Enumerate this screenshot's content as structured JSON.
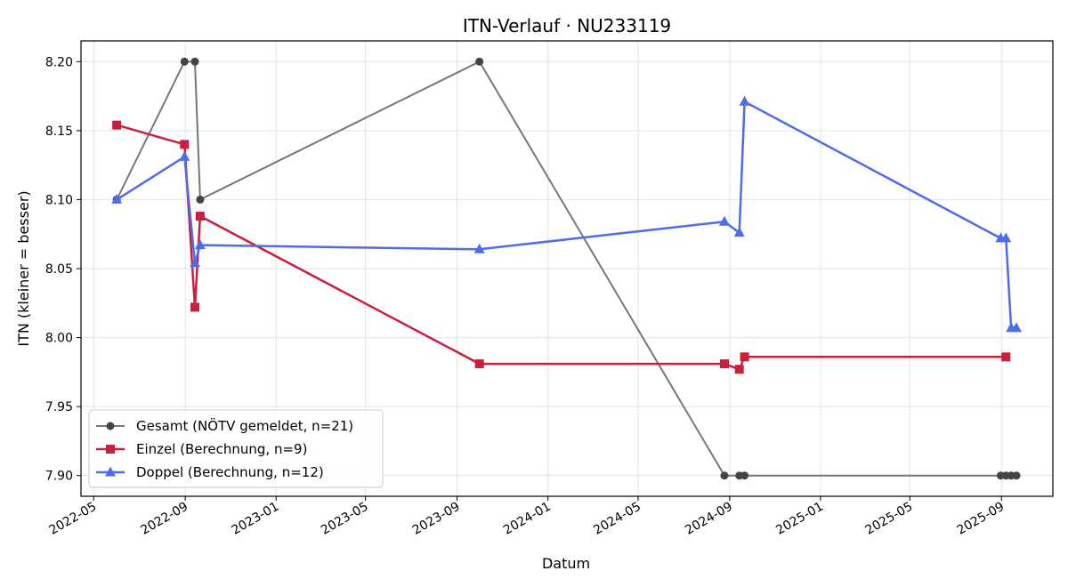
{
  "chart_data": {
    "type": "line",
    "title": "ITN-Verlauf · NU233119",
    "xlabel": "Datum",
    "ylabel": "ITN  (kleiner = besser)",
    "xlim": [
      "2022-04-14",
      "2025-11-09"
    ],
    "ylim": [
      7.885,
      8.215
    ],
    "x_ticks": [
      "2022-05",
      "2022-09",
      "2023-01",
      "2023-05",
      "2023-09",
      "2024-01",
      "2024-05",
      "2024-09",
      "2025-01",
      "2025-05",
      "2025-09"
    ],
    "y_ticks": [
      7.9,
      7.95,
      8.0,
      8.05,
      8.1,
      8.15,
      8.2
    ],
    "grid": true,
    "legend_position": "lower-left",
    "series": [
      {
        "name": "Gesamt (NÖTV gemeldet, n=21)",
        "color": "#777777",
        "marker_color": "#444444",
        "marker": "circle",
        "points": [
          {
            "x": "2022-06-01",
            "y": 8.1
          },
          {
            "x": "2022-08-31",
            "y": 8.2
          },
          {
            "x": "2022-09-14",
            "y": 8.2
          },
          {
            "x": "2022-09-21",
            "y": 8.1
          },
          {
            "x": "2023-10-01",
            "y": 8.2
          },
          {
            "x": "2024-08-25",
            "y": 7.9
          },
          {
            "x": "2024-09-14",
            "y": 7.9
          },
          {
            "x": "2024-09-21",
            "y": 7.9
          },
          {
            "x": "2025-08-31",
            "y": 7.9
          },
          {
            "x": "2025-09-07",
            "y": 7.9
          },
          {
            "x": "2025-09-14",
            "y": 7.9
          },
          {
            "x": "2025-09-21",
            "y": 7.9
          }
        ]
      },
      {
        "name": "Einzel (Berechnung, n=9)",
        "color": "#c8203c",
        "marker_color": "#c8203c",
        "marker": "square",
        "points": [
          {
            "x": "2022-06-01",
            "y": 8.154
          },
          {
            "x": "2022-08-31",
            "y": 8.14
          },
          {
            "x": "2022-09-14",
            "y": 8.022
          },
          {
            "x": "2022-09-21",
            "y": 8.088
          },
          {
            "x": "2023-10-01",
            "y": 7.981
          },
          {
            "x": "2024-08-25",
            "y": 7.981
          },
          {
            "x": "2024-09-14",
            "y": 7.977
          },
          {
            "x": "2024-09-21",
            "y": 7.986
          },
          {
            "x": "2025-09-07",
            "y": 7.986
          }
        ]
      },
      {
        "name": "Doppel (Berechnung, n=12)",
        "color": "#4e6cec",
        "marker_color": "#4e6cec",
        "marker": "triangle",
        "points": [
          {
            "x": "2022-06-01",
            "y": 8.1
          },
          {
            "x": "2022-08-31",
            "y": 8.131
          },
          {
            "x": "2022-09-14",
            "y": 8.054
          },
          {
            "x": "2022-09-21",
            "y": 8.067
          },
          {
            "x": "2023-10-01",
            "y": 8.064
          },
          {
            "x": "2024-08-25",
            "y": 8.084
          },
          {
            "x": "2024-09-14",
            "y": 8.076
          },
          {
            "x": "2024-09-21",
            "y": 8.171
          },
          {
            "x": "2025-08-31",
            "y": 8.072
          },
          {
            "x": "2025-09-07",
            "y": 8.072
          },
          {
            "x": "2025-09-14",
            "y": 8.007
          },
          {
            "x": "2025-09-21",
            "y": 8.007
          }
        ]
      }
    ]
  }
}
